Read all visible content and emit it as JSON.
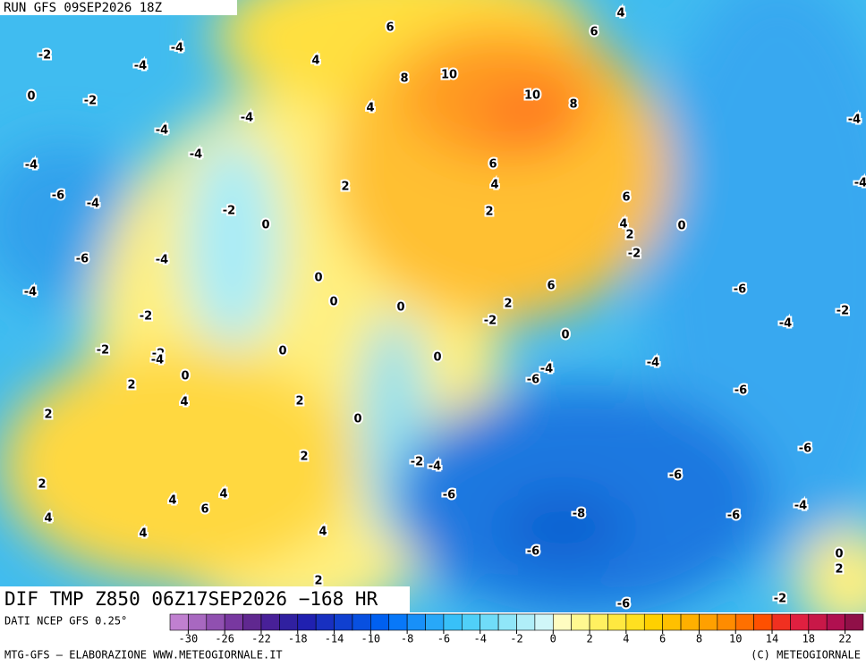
{
  "header": {
    "run": "RUN GFS 09SEP2026 18Z"
  },
  "map": {
    "title": "DIF TMP Z850 06Z17SEP2026 −168 HR",
    "contour_labels": [
      -2,
      -4,
      -4,
      0,
      -2,
      -4,
      -4,
      -4,
      -4,
      -6,
      -4,
      -6,
      -4,
      -4,
      -2,
      -2,
      -2,
      -4,
      0,
      2,
      4,
      2,
      2,
      4,
      4,
      4,
      6,
      4,
      2,
      4,
      2,
      0,
      2,
      0,
      0,
      0,
      0,
      -2,
      2,
      4,
      4,
      6,
      8,
      10,
      10,
      8,
      6,
      4,
      2,
      4,
      6,
      6,
      4,
      2,
      -2,
      0,
      6,
      2,
      -2,
      0,
      0,
      0,
      -4,
      -6,
      -4,
      -6,
      -4,
      -2,
      -4,
      -4,
      -6,
      -6,
      -6,
      -6,
      -4,
      -2,
      -4,
      -6,
      -8,
      -6,
      -6,
      -2,
      0,
      2
    ]
  },
  "colorbar": {
    "source": "DATI NCEP GFS 0.25°",
    "colors": [
      "#c080d0",
      "#a868c0",
      "#9050b0",
      "#7838a0",
      "#602890",
      "#482098",
      "#3020a0",
      "#2020b0",
      "#1830c0",
      "#1040d0",
      "#0850e0",
      "#0060f0",
      "#0878f8",
      "#1890f8",
      "#28a8f8",
      "#38c0f8",
      "#50d0f8",
      "#70dcf8",
      "#90e6f8",
      "#b0eef8",
      "#d0f6f8",
      "#fffcc0",
      "#fff890",
      "#fff060",
      "#ffe840",
      "#ffe020",
      "#ffd000",
      "#ffc000",
      "#ffb000",
      "#ffa000",
      "#ff8c00",
      "#ff7000",
      "#ff5000",
      "#f03020",
      "#e02040",
      "#c81848",
      "#b01050",
      "#901048"
    ],
    "ticks": [
      -30,
      -26,
      -22,
      -18,
      -14,
      -10,
      -8,
      -6,
      -4,
      -2,
      0,
      2,
      4,
      6,
      8,
      10,
      14,
      18,
      22
    ]
  },
  "footer": {
    "credit": "MTG-GFS — ELABORAZIONE WWW.METEOGIORNALE.IT",
    "copyright": "(C) METEOGIORNALE"
  }
}
